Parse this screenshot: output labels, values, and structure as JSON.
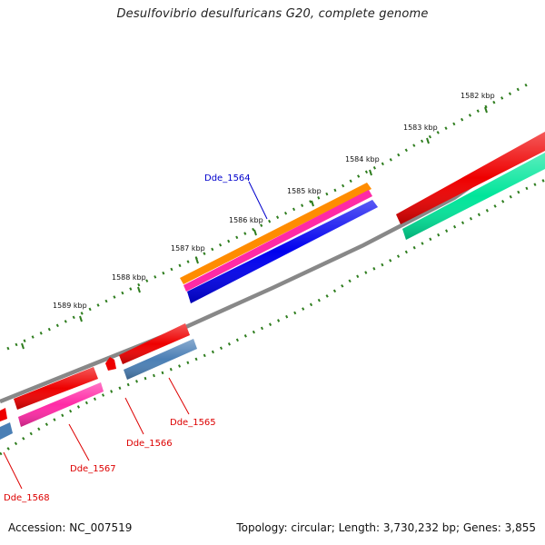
{
  "title": "Desulfovibrio desulfuricans G20, complete genome",
  "footer": {
    "accession": "Accession: NC_007519",
    "topology": "Topology: circular; Length: 3,730,232 bp; Genes: 3,855"
  },
  "ruler": {
    "labels": [
      "1582 kbp",
      "1583 kbp",
      "1584 kbp",
      "1585 kbp",
      "1586 kbp",
      "1587 kbp",
      "1588 kbp",
      "1589 kbp"
    ],
    "tick_color": "#2e7d1e"
  },
  "backbone_color": "#888888",
  "genes": [
    {
      "label": "Dde_1564",
      "label_color": "#0000cc",
      "colors": [
        "#ff8c00",
        "#ff2aa6",
        "#0000ee"
      ]
    },
    {
      "label": "Dde_1565",
      "label_color": "#dd0000",
      "colors": [
        "#ee0000",
        "#4a7fb5"
      ]
    },
    {
      "label": "Dde_1566",
      "label_color": "#dd0000",
      "colors": [
        "#ee0000"
      ]
    },
    {
      "label": "Dde_1567",
      "label_color": "#dd0000",
      "colors": [
        "#ee0000",
        "#ff2aa6"
      ]
    },
    {
      "label": "Dde_1568",
      "label_color": "#dd0000",
      "colors": [
        "#ee0000",
        "#4a7fb5"
      ]
    }
  ],
  "unlabeled_features": {
    "colors": [
      "#ee0000",
      "#00e59a"
    ]
  }
}
